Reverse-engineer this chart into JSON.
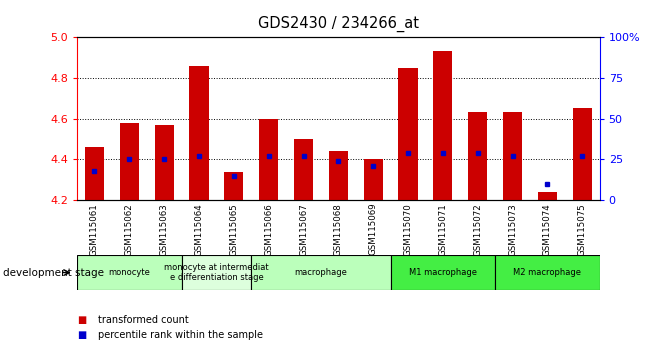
{
  "title": "GDS2430 / 234266_at",
  "samples": [
    "GSM115061",
    "GSM115062",
    "GSM115063",
    "GSM115064",
    "GSM115065",
    "GSM115066",
    "GSM115067",
    "GSM115068",
    "GSM115069",
    "GSM115070",
    "GSM115071",
    "GSM115072",
    "GSM115073",
    "GSM115074",
    "GSM115075"
  ],
  "transformed_count": [
    4.46,
    4.58,
    4.57,
    4.86,
    4.34,
    4.6,
    4.5,
    4.44,
    4.4,
    4.85,
    4.93,
    4.63,
    4.63,
    4.24,
    4.65
  ],
  "percentile_rank": [
    18,
    25,
    25,
    27,
    15,
    27,
    27,
    24,
    21,
    29,
    29,
    29,
    27,
    10,
    27
  ],
  "ylim_min": 4.2,
  "ylim_max": 5.0,
  "yticks": [
    4.2,
    4.4,
    4.6,
    4.8,
    5.0
  ],
  "y2ticks": [
    0,
    25,
    50,
    75,
    100
  ],
  "y2labels": [
    "0",
    "25",
    "50",
    "75",
    "100%"
  ],
  "bar_color": "#cc0000",
  "dot_color": "#0000cc",
  "stages": [
    {
      "label": "monocyte",
      "start": 0,
      "end": 3,
      "color": "#bbffbb"
    },
    {
      "label": "monocyte at intermediat\ne differentiation stage",
      "start": 3,
      "end": 5,
      "color": "#ddffdd"
    },
    {
      "label": "macrophage",
      "start": 5,
      "end": 9,
      "color": "#bbffbb"
    },
    {
      "label": "M1 macrophage",
      "start": 9,
      "end": 12,
      "color": "#44ee44"
    },
    {
      "label": "M2 macrophage",
      "start": 12,
      "end": 15,
      "color": "#44ee44"
    }
  ],
  "dev_stage_label": "development stage",
  "legend_tc": "transformed count",
  "legend_pr": "percentile rank within the sample",
  "bar_color_legend": "#cc0000",
  "dot_color_legend": "#0000cc"
}
